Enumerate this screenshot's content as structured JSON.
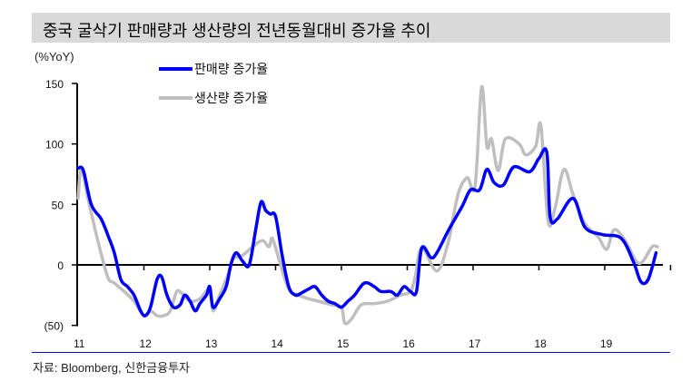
{
  "title": "중국 굴삭기 판매량과 생산량의 전년동월대비 증가율 추이",
  "source": "자료: Bloomberg, 신한금융투자",
  "chart_data": {
    "type": "line",
    "title": "중국 굴삭기 판매량과 생산량의 전년동월대비 증가율 추이",
    "ylabel": "(%YoY)",
    "xlabel": "",
    "ylim": [
      -50,
      150
    ],
    "xlim": [
      2011,
      2019.85
    ],
    "yticks": [
      150,
      100,
      50,
      0,
      -50
    ],
    "ytick_labels": [
      "150",
      "100",
      "50",
      "0",
      "(50)"
    ],
    "xticks": [
      2011,
      2012,
      2013,
      2014,
      2015,
      2016,
      2017,
      2018,
      2019
    ],
    "xtick_labels": [
      "11",
      "12",
      "13",
      "14",
      "15",
      "16",
      "17",
      "18",
      "19"
    ],
    "grid": false,
    "legend_position": "top-center",
    "series": [
      {
        "name": "판매량 증가율",
        "color": "#0000ff",
        "points": [
          [
            2011.0,
            80
          ],
          [
            2011.08,
            78
          ],
          [
            2011.2,
            50
          ],
          [
            2011.35,
            38
          ],
          [
            2011.45,
            25
          ],
          [
            2011.55,
            10
          ],
          [
            2011.65,
            -12
          ],
          [
            2011.75,
            -18
          ],
          [
            2011.85,
            -25
          ],
          [
            2011.95,
            -38
          ],
          [
            2012.02,
            -42
          ],
          [
            2012.1,
            -35
          ],
          [
            2012.2,
            -12
          ],
          [
            2012.27,
            -10
          ],
          [
            2012.35,
            -25
          ],
          [
            2012.45,
            -35
          ],
          [
            2012.55,
            -33
          ],
          [
            2012.62,
            -25
          ],
          [
            2012.7,
            -30
          ],
          [
            2012.78,
            -38
          ],
          [
            2012.85,
            -32
          ],
          [
            2012.95,
            -25
          ],
          [
            2013.0,
            -18
          ],
          [
            2013.05,
            -35
          ],
          [
            2013.15,
            -28
          ],
          [
            2013.25,
            -18
          ],
          [
            2013.32,
            0
          ],
          [
            2013.4,
            10
          ],
          [
            2013.5,
            3
          ],
          [
            2013.6,
            0
          ],
          [
            2013.7,
            30
          ],
          [
            2013.78,
            52
          ],
          [
            2013.85,
            45
          ],
          [
            2013.92,
            42
          ],
          [
            2014.0,
            40
          ],
          [
            2014.1,
            8
          ],
          [
            2014.2,
            -18
          ],
          [
            2014.3,
            -25
          ],
          [
            2014.4,
            -23
          ],
          [
            2014.5,
            -20
          ],
          [
            2014.6,
            -18
          ],
          [
            2014.7,
            -25
          ],
          [
            2014.8,
            -30
          ],
          [
            2014.9,
            -32
          ],
          [
            2015.0,
            -35
          ],
          [
            2015.1,
            -30
          ],
          [
            2015.2,
            -25
          ],
          [
            2015.35,
            -15
          ],
          [
            2015.5,
            -18
          ],
          [
            2015.6,
            -22
          ],
          [
            2015.75,
            -22
          ],
          [
            2015.85,
            -25
          ],
          [
            2015.95,
            -18
          ],
          [
            2016.05,
            -22
          ],
          [
            2016.14,
            -22
          ],
          [
            2016.22,
            14
          ],
          [
            2016.36,
            6
          ],
          [
            2016.45,
            10
          ],
          [
            2016.63,
            29
          ],
          [
            2016.83,
            48
          ],
          [
            2016.96,
            62
          ],
          [
            2017.1,
            62
          ],
          [
            2017.21,
            79
          ],
          [
            2017.32,
            68
          ],
          [
            2017.46,
            66
          ],
          [
            2017.62,
            81
          ],
          [
            2017.86,
            77
          ],
          [
            2018.0,
            88
          ],
          [
            2018.12,
            93
          ],
          [
            2018.17,
            40
          ],
          [
            2018.28,
            38
          ],
          [
            2018.52,
            55
          ],
          [
            2018.7,
            31
          ],
          [
            2018.97,
            25
          ],
          [
            2019.25,
            22
          ],
          [
            2019.44,
            2
          ],
          [
            2019.55,
            -14
          ],
          [
            2019.66,
            -12
          ],
          [
            2019.78,
            10
          ]
        ]
      },
      {
        "name": "생산량 증가율",
        "color": "#bfbfbf",
        "points": [
          [
            2011.0,
            55
          ],
          [
            2011.05,
            80
          ],
          [
            2011.15,
            55
          ],
          [
            2011.3,
            20
          ],
          [
            2011.45,
            -10
          ],
          [
            2011.55,
            -15
          ],
          [
            2011.7,
            -22
          ],
          [
            2011.85,
            -30
          ],
          [
            2012.0,
            -42
          ],
          [
            2012.1,
            -38
          ],
          [
            2012.2,
            -42
          ],
          [
            2012.3,
            -42
          ],
          [
            2012.4,
            -38
          ],
          [
            2012.5,
            -22
          ],
          [
            2012.6,
            -25
          ],
          [
            2012.7,
            -30
          ],
          [
            2012.85,
            -28
          ],
          [
            2013.0,
            -20
          ],
          [
            2013.05,
            -38
          ],
          [
            2013.15,
            -25
          ],
          [
            2013.3,
            -5
          ],
          [
            2013.35,
            5
          ],
          [
            2013.5,
            8
          ],
          [
            2013.65,
            15
          ],
          [
            2013.8,
            20
          ],
          [
            2013.9,
            15
          ],
          [
            2013.95,
            22
          ],
          [
            2014.05,
            5
          ],
          [
            2014.2,
            -20
          ],
          [
            2014.35,
            -25
          ],
          [
            2014.5,
            -28
          ],
          [
            2014.65,
            -30
          ],
          [
            2014.85,
            -33
          ],
          [
            2015.0,
            -35
          ],
          [
            2015.05,
            -48
          ],
          [
            2015.15,
            -45
          ],
          [
            2015.3,
            -33
          ],
          [
            2015.5,
            -32
          ],
          [
            2015.7,
            -30
          ],
          [
            2015.9,
            -25
          ],
          [
            2016.05,
            -22
          ],
          [
            2016.12,
            -10
          ],
          [
            2016.22,
            14
          ],
          [
            2016.45,
            -5
          ],
          [
            2016.62,
            18
          ],
          [
            2016.77,
            58
          ],
          [
            2016.91,
            72
          ],
          [
            2017.03,
            65
          ],
          [
            2017.13,
            147
          ],
          [
            2017.21,
            98
          ],
          [
            2017.28,
            104
          ],
          [
            2017.38,
            78
          ],
          [
            2017.49,
            104
          ],
          [
            2017.7,
            100
          ],
          [
            2017.8,
            91
          ],
          [
            2017.95,
            98
          ],
          [
            2018.03,
            115
          ],
          [
            2018.14,
            36
          ],
          [
            2018.25,
            48
          ],
          [
            2018.38,
            79
          ],
          [
            2018.52,
            58
          ],
          [
            2018.7,
            34
          ],
          [
            2018.9,
            23
          ],
          [
            2019.03,
            13
          ],
          [
            2019.14,
            29
          ],
          [
            2019.3,
            21
          ],
          [
            2019.48,
            3
          ],
          [
            2019.58,
            3
          ],
          [
            2019.72,
            15
          ],
          [
            2019.8,
            15
          ]
        ]
      }
    ]
  }
}
